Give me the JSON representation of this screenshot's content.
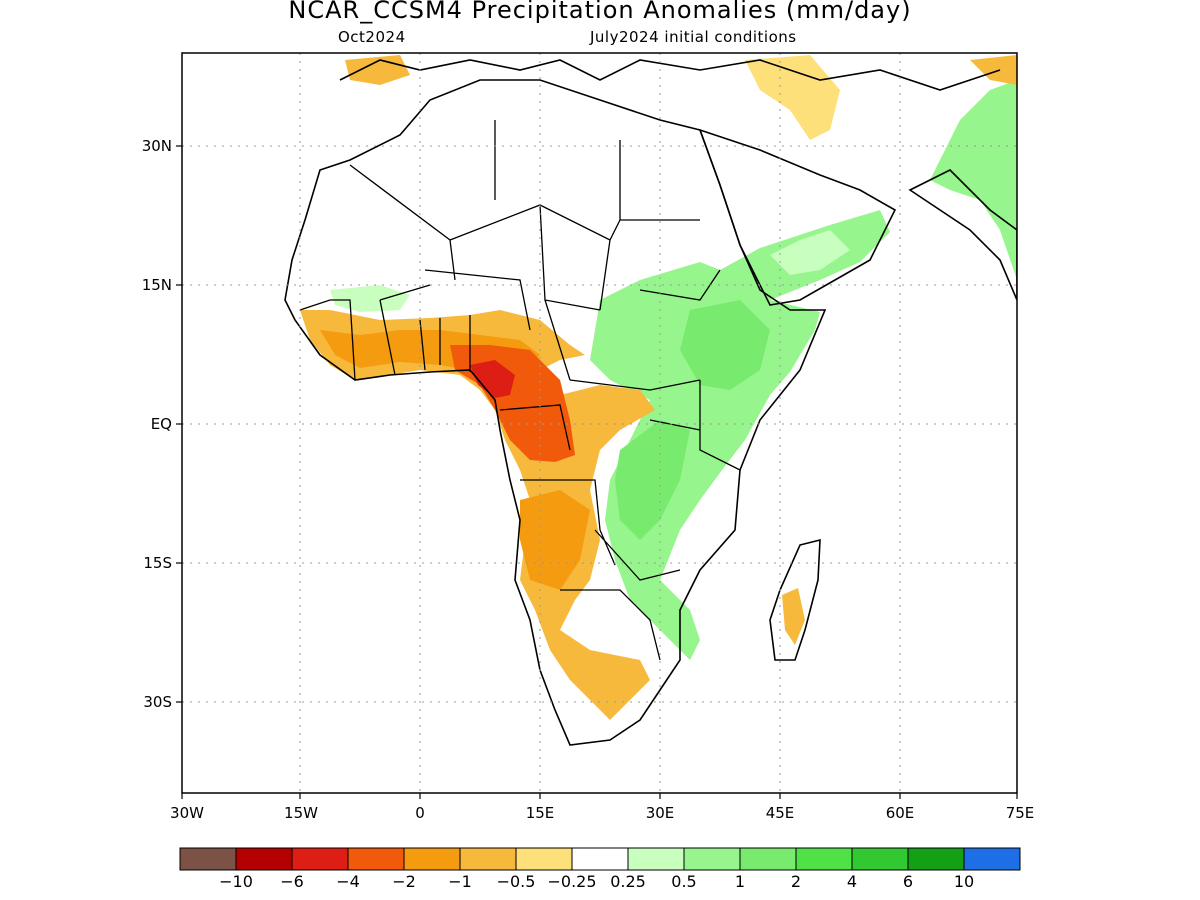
{
  "title": "NCAR_CCSM4 Precipitation Anomalies (mm/day)",
  "subtitle_left": "Oct2024",
  "subtitle_right": "July2024 initial conditions",
  "lat_labels": [
    "30N",
    "15N",
    "EQ",
    "15S",
    "30S"
  ],
  "lon_labels": [
    "30W",
    "15W",
    "0",
    "15E",
    "30E",
    "45E",
    "60E",
    "75E"
  ],
  "colorbar": {
    "colors": [
      "#7b5245",
      "#b40000",
      "#dc1e14",
      "#f05a0a",
      "#f59b0f",
      "#f7b93c",
      "#fde07a",
      "#ffffff",
      "#c8ffbe",
      "#96f58c",
      "#78eb6e",
      "#50e146",
      "#32c832",
      "#14a014",
      "#1e6ee6"
    ],
    "labels": [
      "−10",
      "−6",
      "−4",
      "−2",
      "−1",
      "−0.5",
      "−0.25",
      "0.25",
      "0.5",
      "1",
      "2",
      "4",
      "6",
      "10"
    ]
  }
}
